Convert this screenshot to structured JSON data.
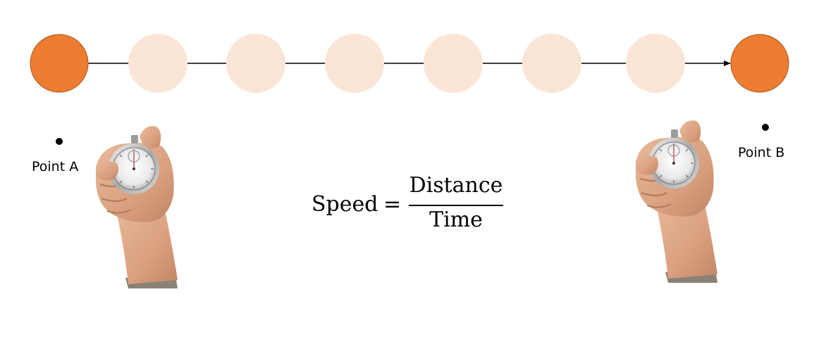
{
  "points": {
    "start_label": "Point A",
    "end_label": "Point B"
  },
  "formula": {
    "lhs": "Speed",
    "operator": "=",
    "numerator": "Distance",
    "denominator": "Time"
  },
  "path": {
    "intermediate_positions": 6
  },
  "colors": {
    "endpoint_fill": "#ED7D31",
    "intermediate_fill": "#FBE5D6",
    "line": "#000000"
  },
  "icons": {
    "start_timer": "stopwatch-in-hand-icon",
    "end_timer": "stopwatch-in-hand-icon"
  }
}
